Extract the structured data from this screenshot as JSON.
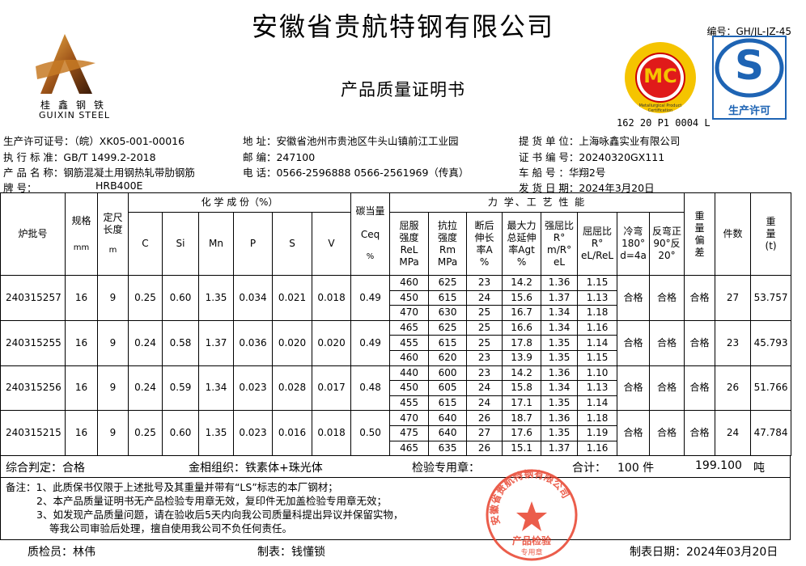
{
  "header": {
    "company": "安徽省贵航特钢有限公司",
    "doc_title": "产品质量证明书",
    "doc_number": "编号：GH/JL-JZ-45",
    "logo_cn": "桂鑫钢铁",
    "logo_en": "GUIXIN STEEL",
    "mc_label": "MC",
    "mc_ring_text": "Metallurgical Product Certification",
    "mc_code": "162 20 P1 0004 L",
    "qs_label": "生产许可",
    "qs_letter": "S"
  },
  "info": {
    "license": "生产许可证号：（皖）XK05-001-00016",
    "standard": "执 行 标 准：GB/T 1499.2-2018",
    "product": "产 品 名 称：钢筋混凝土用钢热轧带肋钢筋",
    "grade_label": "牌      号：",
    "grade": "HRB400E",
    "address": "地   址：安徽省池州市贵池区牛头山镇前江工业园",
    "postcode": "邮   编：247100",
    "phone": "电   话：0566-2596888  0566-2561969（传真）",
    "customer": "提 货 单 位：上海咏鑫实业有限公司",
    "cert_no": "证 书 编 号：20240320GX111",
    "vehicle": "车   船   号 ：华翔2号",
    "ship_date": "发 货 日 期：2024年3月20日"
  },
  "table": {
    "headers": {
      "lot": "炉批号",
      "size": "规格",
      "size_unit": "mm",
      "length": "定尺长度",
      "length_unit": "m",
      "chem": "化 学 成 份（%）",
      "C": "C",
      "Si": "Si",
      "Mn": "Mn",
      "P": "P",
      "S": "S",
      "V": "V",
      "ceq": "碳当量",
      "ceq_sym": "Ceq",
      "ceq_unit": "%",
      "mech": "力 学、工 艺 性 能",
      "rel": "屈服强度ReL MPa",
      "rm": "抗拉强度Rm MPa",
      "a": "断后伸长率A %",
      "agt": "最大力总延伸率Agt %",
      "ratio1": "强屈比R° m/R° eL",
      "ratio2": "屈屈比R° eL/ReL",
      "bend": "冷弯180° d=4a",
      "rebend": "反弯正90°反20°",
      "dev": "重量偏差",
      "pieces": "件数",
      "weight": "重量(t)"
    },
    "rows": [
      {
        "lot": "240315257",
        "size": "16",
        "length": "9",
        "C": "0.25",
        "Si": "0.60",
        "Mn": "1.35",
        "P": "0.034",
        "S": "0.021",
        "V": "0.018",
        "ceq": "0.49",
        "mech": [
          [
            "460",
            "625",
            "23",
            "14.2",
            "1.36",
            "1.15"
          ],
          [
            "450",
            "615",
            "24",
            "15.6",
            "1.37",
            "1.13"
          ],
          [
            "470",
            "630",
            "25",
            "16.7",
            "1.34",
            "1.18"
          ]
        ],
        "bend": "合格",
        "rebend": "合格",
        "dev": "合格",
        "pieces": "27",
        "weight": "53.757"
      },
      {
        "lot": "240315255",
        "size": "16",
        "length": "9",
        "C": "0.24",
        "Si": "0.58",
        "Mn": "1.37",
        "P": "0.036",
        "S": "0.020",
        "V": "0.020",
        "ceq": "0.49",
        "mech": [
          [
            "465",
            "625",
            "25",
            "16.6",
            "1.34",
            "1.16"
          ],
          [
            "455",
            "615",
            "25",
            "17.8",
            "1.35",
            "1.14"
          ],
          [
            "460",
            "620",
            "23",
            "13.9",
            "1.35",
            "1.15"
          ]
        ],
        "bend": "合格",
        "rebend": "合格",
        "dev": "合格",
        "pieces": "23",
        "weight": "45.793"
      },
      {
        "lot": "240315256",
        "size": "16",
        "length": "9",
        "C": "0.24",
        "Si": "0.59",
        "Mn": "1.34",
        "P": "0.023",
        "S": "0.028",
        "V": "0.017",
        "ceq": "0.48",
        "mech": [
          [
            "440",
            "600",
            "23",
            "14.2",
            "1.36",
            "1.10"
          ],
          [
            "450",
            "605",
            "24",
            "15.8",
            "1.34",
            "1.13"
          ],
          [
            "455",
            "615",
            "24",
            "17.1",
            "1.35",
            "1.14"
          ]
        ],
        "bend": "合格",
        "rebend": "合格",
        "dev": "合格",
        "pieces": "26",
        "weight": "51.766"
      },
      {
        "lot": "240315215",
        "size": "16",
        "length": "9",
        "C": "0.25",
        "Si": "0.60",
        "Mn": "1.35",
        "P": "0.023",
        "S": "0.016",
        "V": "0.018",
        "ceq": "0.50",
        "mech": [
          [
            "470",
            "640",
            "26",
            "18.7",
            "1.36",
            "1.18"
          ],
          [
            "475",
            "640",
            "27",
            "17.6",
            "1.35",
            "1.19"
          ],
          [
            "465",
            "635",
            "26",
            "15.1",
            "1.37",
            "1.16"
          ]
        ],
        "bend": "合格",
        "rebend": "合格",
        "dev": "合格",
        "pieces": "24",
        "weight": "47.784"
      }
    ]
  },
  "summary": {
    "verdict": "综合判定：合格",
    "structure": "金相组织：铁素体+珠光体",
    "seal_label": "检验专用章：",
    "total_label": "合计：",
    "total_pieces": "100 件",
    "total_weight": "199.100",
    "weight_unit": "吨"
  },
  "notes": [
    "备注：1、此质保书仅限于上述批号及其重量并带有“LS”标志的本厂钢材；",
    "2、本产品质量证明书无产品检验专用章无效，复印件无加盖检验专用章无效；",
    "3、如发现产品质量问题，请在验收后5天内向我公司质量科提出异议并保留实物，",
    "等我公司审验后处理，擅自使用我公司不负任何责任。"
  ],
  "footer": {
    "inspector": "质检员：林伟",
    "tabulator": "制表：钱懂锁",
    "date": "制表日期：2024年03月20日"
  },
  "stamp": {
    "ring_text": "安徽省贵航特钢有限公司",
    "center_text": "产品检验",
    "bottom_text": "专用章",
    "color": "#e8412c"
  }
}
